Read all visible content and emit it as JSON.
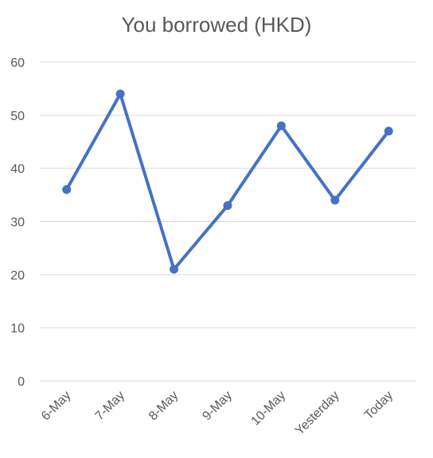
{
  "chart_data": {
    "type": "line",
    "title": "You borrowed (HKD)",
    "xlabel": "",
    "ylabel": "",
    "categories": [
      "6-May",
      "7-May",
      "8-May",
      "9-May",
      "10-May",
      "Yesterday",
      "Today"
    ],
    "series": [
      {
        "values": [
          36,
          54,
          21,
          33,
          48,
          34,
          47
        ]
      }
    ],
    "ylim": [
      0,
      60
    ],
    "yticks": [
      0,
      10,
      20,
      30,
      40,
      50,
      60
    ],
    "grid": true,
    "legend": "none",
    "colors": {
      "series": "#4472C4",
      "grid": "#d9d9d9",
      "tick_text": "#595959"
    }
  }
}
